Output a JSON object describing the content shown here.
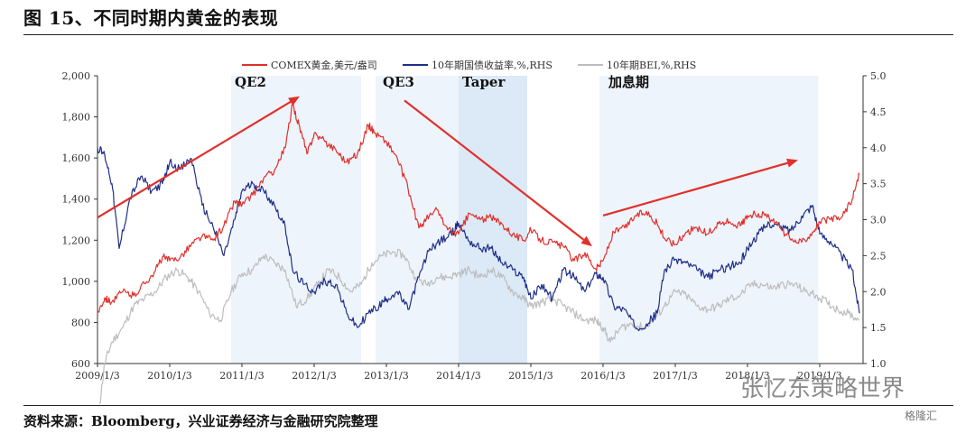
{
  "header": {
    "title": "图 15、不同时期内黄金的表现"
  },
  "footer": {
    "source": "资料来源：Bloomberg，兴业证券经济与金融研究院整理",
    "watermark": "张忆东策略世界",
    "badge": "格隆汇"
  },
  "colors": {
    "gold": "#e0302c",
    "yield": "#1f2f88",
    "bei": "#bdbdbd",
    "arrow": "#e0302c",
    "shade": "#eef4fb",
    "shade_dark": "#dce9f6"
  },
  "chart_data": {
    "type": "line",
    "x_tick_labels": [
      "2009/1/3",
      "2010/1/3",
      "2011/1/3",
      "2012/1/3",
      "2013/1/3",
      "2014/1/3",
      "2015/1/3",
      "2016/1/3",
      "2017/1/3",
      "2018/1/3",
      "2019/1/3"
    ],
    "y_left": {
      "ticks": [
        "600",
        "800",
        "1,000",
        "1,200",
        "1,400",
        "1,600",
        "1,800",
        "2,000"
      ],
      "range": [
        600,
        2000
      ]
    },
    "y_right": {
      "ticks": [
        "1.0",
        "1.5",
        "2.0",
        "2.5",
        "3.0",
        "3.5",
        "4.0",
        "4.5",
        "5.0"
      ],
      "range": [
        1.0,
        5.0
      ]
    },
    "x_range": [
      2009.0,
      2019.6
    ],
    "legend": [
      "COMEX黄金,美元/盎司",
      "10年期国债收益率,%,RHS",
      "10年期BEI,%,RHS"
    ],
    "periods": [
      {
        "label": "QE2",
        "start": 2010.85,
        "end": 2012.65,
        "tone": "light"
      },
      {
        "label": "QE3",
        "start": 2012.85,
        "end": 2014.0,
        "tone": "light"
      },
      {
        "label": "Taper",
        "start": 2014.0,
        "end": 2014.95,
        "tone": "dark"
      },
      {
        "label": "加息期",
        "start": 2015.95,
        "end": 2018.98,
        "tone": "light"
      }
    ],
    "arrows": [
      {
        "from": [
          2009.0,
          1310
        ],
        "to": [
          2011.8,
          1900
        ]
      },
      {
        "from": [
          2013.25,
          1880
        ],
        "to": [
          2015.85,
          1170
        ]
      },
      {
        "from": [
          2016.0,
          1320
        ],
        "to": [
          2018.7,
          1590
        ]
      }
    ],
    "series": [
      {
        "name": "COMEX黄金,美元/盎司",
        "axis": "left",
        "color": "#e0302c",
        "x": [
          2009.0,
          2009.1,
          2009.2,
          2009.35,
          2009.5,
          2009.65,
          2009.8,
          2009.9,
          2010.0,
          2010.15,
          2010.3,
          2010.45,
          2010.6,
          2010.75,
          2010.9,
          2011.0,
          2011.15,
          2011.3,
          2011.45,
          2011.6,
          2011.7,
          2011.8,
          2011.9,
          2012.0,
          2012.15,
          2012.3,
          2012.45,
          2012.6,
          2012.75,
          2012.85,
          2013.0,
          2013.15,
          2013.3,
          2013.45,
          2013.55,
          2013.7,
          2013.85,
          2014.0,
          2014.15,
          2014.3,
          2014.45,
          2014.6,
          2014.75,
          2014.9,
          2015.0,
          2015.15,
          2015.3,
          2015.45,
          2015.6,
          2015.75,
          2015.9,
          2016.0,
          2016.15,
          2016.3,
          2016.45,
          2016.6,
          2016.75,
          2016.85,
          2017.0,
          2017.15,
          2017.3,
          2017.45,
          2017.6,
          2017.75,
          2017.9,
          2018.0,
          2018.15,
          2018.3,
          2018.45,
          2018.6,
          2018.75,
          2018.9,
          2019.0,
          2019.15,
          2019.3,
          2019.45,
          2019.55
        ],
        "y": [
          850,
          920,
          900,
          950,
          930,
          990,
          1050,
          1120,
          1100,
          1120,
          1180,
          1220,
          1200,
          1270,
          1390,
          1370,
          1420,
          1500,
          1540,
          1650,
          1860,
          1750,
          1620,
          1720,
          1680,
          1640,
          1580,
          1620,
          1760,
          1720,
          1680,
          1600,
          1450,
          1260,
          1300,
          1350,
          1250,
          1230,
          1330,
          1300,
          1310,
          1280,
          1230,
          1200,
          1250,
          1200,
          1190,
          1170,
          1100,
          1140,
          1060,
          1100,
          1240,
          1260,
          1320,
          1340,
          1280,
          1210,
          1180,
          1240,
          1260,
          1230,
          1280,
          1290,
          1270,
          1320,
          1330,
          1310,
          1260,
          1200,
          1190,
          1240,
          1290,
          1300,
          1310,
          1400,
          1520
        ]
      },
      {
        "name": "10年期国债收益率,%,RHS",
        "axis": "right",
        "color": "#1f2f88",
        "x": [
          2009.0,
          2009.1,
          2009.2,
          2009.3,
          2009.45,
          2009.6,
          2009.75,
          2009.9,
          2010.0,
          2010.15,
          2010.3,
          2010.45,
          2010.6,
          2010.75,
          2010.9,
          2011.0,
          2011.15,
          2011.3,
          2011.45,
          2011.6,
          2011.7,
          2011.85,
          2012.0,
          2012.15,
          2012.3,
          2012.45,
          2012.6,
          2012.75,
          2012.9,
          2013.0,
          2013.15,
          2013.3,
          2013.45,
          2013.6,
          2013.75,
          2013.9,
          2014.0,
          2014.15,
          2014.3,
          2014.45,
          2014.6,
          2014.75,
          2014.9,
          2015.0,
          2015.15,
          2015.3,
          2015.45,
          2015.6,
          2015.75,
          2015.9,
          2016.0,
          2016.15,
          2016.3,
          2016.45,
          2016.6,
          2016.75,
          2016.85,
          2017.0,
          2017.15,
          2017.3,
          2017.45,
          2017.6,
          2017.75,
          2017.9,
          2018.0,
          2018.15,
          2018.3,
          2018.45,
          2018.6,
          2018.75,
          2018.9,
          2019.0,
          2019.15,
          2019.3,
          2019.45,
          2019.55
        ],
        "y": [
          4.0,
          3.9,
          3.5,
          2.6,
          3.3,
          3.6,
          3.4,
          3.5,
          3.8,
          3.7,
          3.85,
          3.2,
          2.9,
          2.5,
          3.0,
          3.4,
          3.5,
          3.4,
          3.2,
          2.9,
          2.3,
          2.1,
          2.0,
          2.15,
          2.1,
          1.7,
          1.5,
          1.7,
          1.8,
          1.9,
          2.0,
          1.75,
          2.2,
          2.6,
          2.7,
          2.8,
          2.95,
          2.7,
          2.6,
          2.6,
          2.4,
          2.3,
          2.2,
          1.9,
          2.1,
          1.9,
          2.3,
          2.2,
          2.0,
          2.25,
          2.2,
          1.8,
          1.75,
          1.5,
          1.55,
          1.7,
          2.3,
          2.45,
          2.4,
          2.3,
          2.2,
          2.3,
          2.35,
          2.4,
          2.6,
          2.8,
          2.95,
          2.9,
          2.85,
          3.05,
          3.2,
          2.8,
          2.7,
          2.5,
          2.3,
          1.7
        ]
      },
      {
        "name": "10年期BEI,%,RHS",
        "axis": "right",
        "color": "#bdbdbd",
        "x": [
          2009.0,
          2009.1,
          2009.2,
          2009.35,
          2009.5,
          2009.65,
          2009.8,
          2009.95,
          2010.1,
          2010.25,
          2010.4,
          2010.55,
          2010.7,
          2010.85,
          2011.0,
          2011.15,
          2011.3,
          2011.45,
          2011.6,
          2011.75,
          2011.9,
          2012.05,
          2012.2,
          2012.35,
          2012.5,
          2012.65,
          2012.8,
          2012.95,
          2013.1,
          2013.25,
          2013.4,
          2013.55,
          2013.7,
          2013.85,
          2014.0,
          2014.15,
          2014.3,
          2014.45,
          2014.6,
          2014.75,
          2014.9,
          2015.0,
          2015.15,
          2015.3,
          2015.45,
          2015.6,
          2015.75,
          2015.9,
          2016.0,
          2016.1,
          2016.25,
          2016.4,
          2016.55,
          2016.7,
          2016.85,
          2017.0,
          2017.15,
          2017.3,
          2017.45,
          2017.6,
          2017.75,
          2017.9,
          2018.05,
          2018.2,
          2018.35,
          2018.5,
          2018.65,
          2018.8,
          2018.95,
          2019.1,
          2019.25,
          2019.4,
          2019.55
        ],
        "y": [
          0.2,
          1.0,
          1.3,
          1.5,
          1.8,
          1.9,
          2.0,
          2.2,
          2.3,
          2.2,
          2.0,
          1.7,
          1.6,
          2.0,
          2.25,
          2.3,
          2.5,
          2.4,
          2.3,
          1.8,
          1.9,
          2.1,
          2.3,
          2.2,
          2.0,
          2.1,
          2.4,
          2.5,
          2.55,
          2.5,
          2.2,
          2.1,
          2.2,
          2.2,
          2.25,
          2.3,
          2.2,
          2.3,
          2.2,
          2.0,
          1.9,
          1.8,
          1.85,
          1.9,
          1.8,
          1.7,
          1.6,
          1.6,
          1.5,
          1.3,
          1.5,
          1.55,
          1.5,
          1.6,
          1.8,
          2.0,
          1.95,
          1.8,
          1.75,
          1.8,
          1.9,
          1.95,
          2.1,
          2.1,
          2.05,
          2.1,
          2.1,
          2.0,
          1.95,
          1.85,
          1.75,
          1.7,
          1.6
        ]
      }
    ]
  }
}
